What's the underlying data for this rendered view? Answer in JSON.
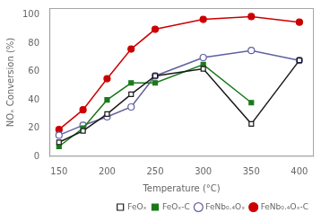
{
  "chart_data": {
    "type": "line",
    "x_label": "Temperature (°C)",
    "y_label": "NOₓ Conversion (%)",
    "x": [
      150,
      175,
      200,
      225,
      250,
      300,
      350,
      400
    ],
    "series": [
      {
        "name": "FeOₓ",
        "color": "#1a1a1a",
        "marker": "square_open",
        "values": [
          10,
          18,
          30,
          44,
          57,
          62,
          23,
          68
        ]
      },
      {
        "name": "FeOₓ-C",
        "color": "#1a7a1a",
        "marker": "square",
        "values": [
          7,
          20,
          40,
          52,
          52,
          65,
          38,
          null
        ]
      },
      {
        "name": "FeNb₀.₄Oₓ",
        "color": "#6060a0",
        "marker": "circle_open",
        "values": [
          15,
          22,
          28,
          35,
          57,
          70,
          75,
          68
        ]
      },
      {
        "name": "FeNb₀.₄Oₓ-C",
        "color": "#cc0000",
        "marker": "circle",
        "values": [
          19,
          33,
          55,
          76,
          90,
          97,
          99,
          95
        ]
      }
    ],
    "xlim": [
      140,
      415
    ],
    "ylim": [
      0,
      105
    ],
    "xticks": [
      150,
      200,
      250,
      300,
      350,
      400
    ],
    "yticks": [
      0,
      20,
      40,
      60,
      80,
      100
    ],
    "grid": false,
    "legend": "lower right"
  }
}
